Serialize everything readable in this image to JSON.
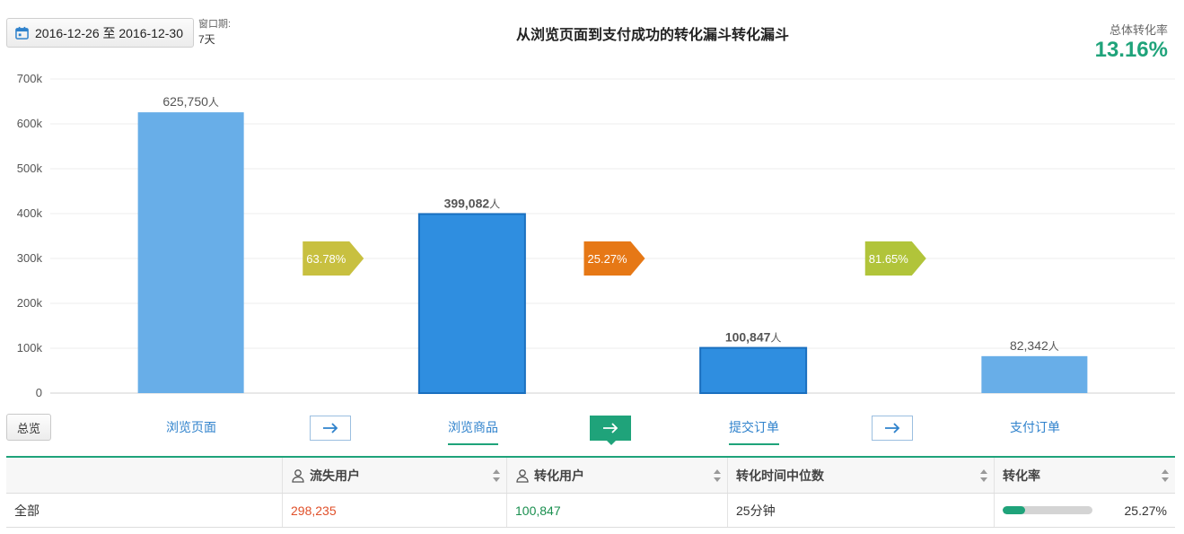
{
  "header": {
    "date_range": "2016-12-26 至 2016-12-30",
    "window_label": "窗口期:",
    "window_value": "7天",
    "title": "从浏览页面到支付成功的转化漏斗转化漏斗",
    "overall_label": "总体转化率",
    "overall_value": "13.16%"
  },
  "chart_data": {
    "type": "bar",
    "categories": [
      "浏览页面",
      "浏览商品",
      "提交订单",
      "支付订单"
    ],
    "values": [
      625750,
      399082,
      100847,
      82342
    ],
    "value_labels": [
      "625,750",
      "399,082",
      "100,847",
      "82,342"
    ],
    "value_unit": "人",
    "ylim": [
      0,
      700000
    ],
    "yticks": [
      "0",
      "100k",
      "200k",
      "300k",
      "400k",
      "500k",
      "600k",
      "700k"
    ],
    "highlighted": [
      false,
      true,
      true,
      false
    ],
    "grid": true,
    "conversions": [
      {
        "label": "63.78%",
        "color": "#c8c040"
      },
      {
        "label": "25.27%",
        "color": "#e67816"
      },
      {
        "label": "81.65%",
        "color": "#b1c43a"
      }
    ],
    "colors": {
      "normal": "#68aee8",
      "highlight": "#2f8ee0",
      "highlight_border": "#1a6fbf"
    }
  },
  "stages": {
    "overview_label": "总览",
    "items": [
      {
        "label": "浏览页面"
      },
      {
        "label": "浏览商品"
      },
      {
        "label": "提交订单"
      },
      {
        "label": "支付订单"
      }
    ]
  },
  "table": {
    "headers": [
      "",
      "流失用户",
      "转化用户",
      "转化时间中位数",
      "转化率"
    ],
    "row": {
      "name": "全部",
      "lost": "298,235",
      "converted": "100,847",
      "median_time": "25分钟",
      "rate": "25.27%",
      "rate_fraction": 0.2527
    }
  },
  "colors": {
    "accent": "#1fa37a",
    "link": "#2f82cc",
    "lost": "#e0502a"
  }
}
